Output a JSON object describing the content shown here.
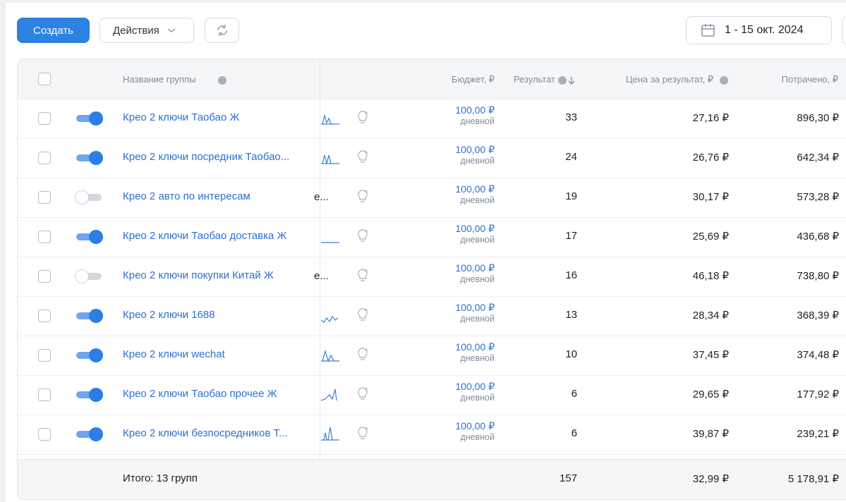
{
  "toolbar": {
    "create": "Создать",
    "actions": "Действия",
    "date": "1 - 15 окт. 2024"
  },
  "table": {
    "headers": {
      "name": "Название группы",
      "budget": "Бюджет, ₽",
      "result": "Результат",
      "price": "Цена за результат, ₽",
      "spent": "Потрачено, ₽"
    },
    "rows": [
      {
        "enabled": true,
        "name": "Крео 2 ключи Таобао Ж",
        "budget": "100,00 ₽",
        "budget_type": "дневной",
        "result": 33,
        "price": "27,16 ₽",
        "spent": "896,30 ₽"
      },
      {
        "enabled": true,
        "name": "Крео 2 ключи посредник Таобао...",
        "budget": "100,00 ₽",
        "budget_type": "дневной",
        "result": 24,
        "price": "26,76 ₽",
        "spent": "642,34 ₽"
      },
      {
        "enabled": false,
        "name": "Крео 2 авто по интересам",
        "note": "е...",
        "budget": "100,00 ₽",
        "budget_type": "дневной",
        "result": 19,
        "price": "30,17 ₽",
        "spent": "573,28 ₽"
      },
      {
        "enabled": true,
        "name": "Крео 2 ключи Таобао доставка Ж",
        "budget": "100,00 ₽",
        "budget_type": "дневной",
        "result": 17,
        "price": "25,69 ₽",
        "spent": "436,68 ₽"
      },
      {
        "enabled": false,
        "name": "Крео 2 ключи покупки Китай Ж",
        "note": "е...",
        "budget": "100,00 ₽",
        "budget_type": "дневной",
        "result": 16,
        "price": "46,18 ₽",
        "spent": "738,80 ₽"
      },
      {
        "enabled": true,
        "name": "Крео 2 ключи 1688",
        "budget": "100,00 ₽",
        "budget_type": "дневной",
        "result": 13,
        "price": "28,34 ₽",
        "spent": "368,39 ₽"
      },
      {
        "enabled": true,
        "name": "Крео 2 ключи wechat",
        "budget": "100,00 ₽",
        "budget_type": "дневной",
        "result": 10,
        "price": "37,45 ₽",
        "spent": "374,48 ₽"
      },
      {
        "enabled": true,
        "name": "Крео 2 ключи Таобао прочее Ж",
        "budget": "100,00 ₽",
        "budget_type": "дневной",
        "result": 6,
        "price": "29,65 ₽",
        "spent": "177,92 ₽"
      },
      {
        "enabled": true,
        "name": "Крео 2 ключи безпосредников Т...",
        "budget": "100,00 ₽",
        "budget_type": "дневной",
        "result": 6,
        "price": "39,87 ₽",
        "spent": "239,21 ₽"
      }
    ],
    "total": {
      "label": "Итого: 13 групп",
      "result": 157,
      "price": "32,99 ₽",
      "spent": "5 178,91 ₽"
    }
  }
}
